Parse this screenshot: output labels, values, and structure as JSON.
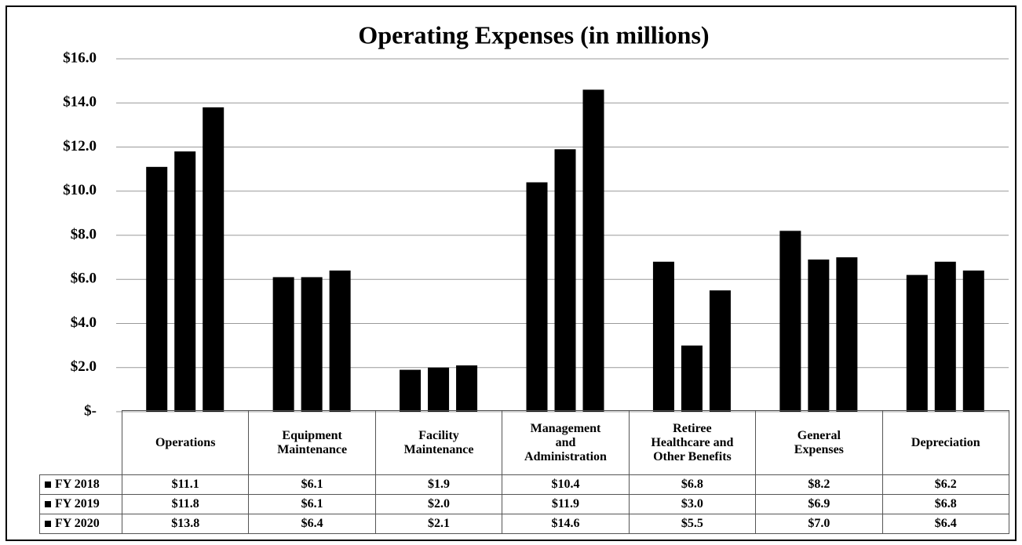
{
  "chart_data": {
    "type": "bar",
    "title": "Operating Expenses (in millions)",
    "categories": [
      "Operations",
      "Equipment\nMaintenance",
      "Facility\nMaintenance",
      "Management\nand\nAdministration",
      "Retiree\nHealthcare and\nOther Benefits",
      "General\nExpenses",
      "Depreciation"
    ],
    "series": [
      {
        "name": "FY 2018",
        "color": "#000000",
        "values": [
          11.1,
          6.1,
          1.9,
          10.4,
          6.8,
          8.2,
          6.2
        ],
        "value_labels": [
          "$11.1",
          "$6.1",
          "$1.9",
          "$10.4",
          "$6.8",
          "$8.2",
          "$6.2"
        ]
      },
      {
        "name": "FY 2019",
        "color": "#000000",
        "values": [
          11.8,
          6.1,
          2.0,
          11.9,
          3.0,
          6.9,
          6.8
        ],
        "value_labels": [
          "$11.8",
          "$6.1",
          "$2.0",
          "$11.9",
          "$3.0",
          "$6.9",
          "$6.8"
        ]
      },
      {
        "name": "FY 2020",
        "color": "#000000",
        "values": [
          13.8,
          6.4,
          2.1,
          14.6,
          5.5,
          7.0,
          6.4
        ],
        "value_labels": [
          "$13.8",
          "$6.4",
          "$2.1",
          "$14.6",
          "$5.5",
          "$7.0",
          "$6.4"
        ]
      }
    ],
    "ylim": [
      0,
      16
    ],
    "yticks": [
      {
        "value": 0,
        "label": "$-"
      },
      {
        "value": 2,
        "label": "$2.0"
      },
      {
        "value": 4,
        "label": "$4.0"
      },
      {
        "value": 6,
        "label": "$6.0"
      },
      {
        "value": 8,
        "label": "$8.0"
      },
      {
        "value": 10,
        "label": "$10.0"
      },
      {
        "value": 12,
        "label": "$12.0"
      },
      {
        "value": 14,
        "label": "$14.0"
      },
      {
        "value": 16,
        "label": "$16.0"
      }
    ],
    "grid": true
  }
}
